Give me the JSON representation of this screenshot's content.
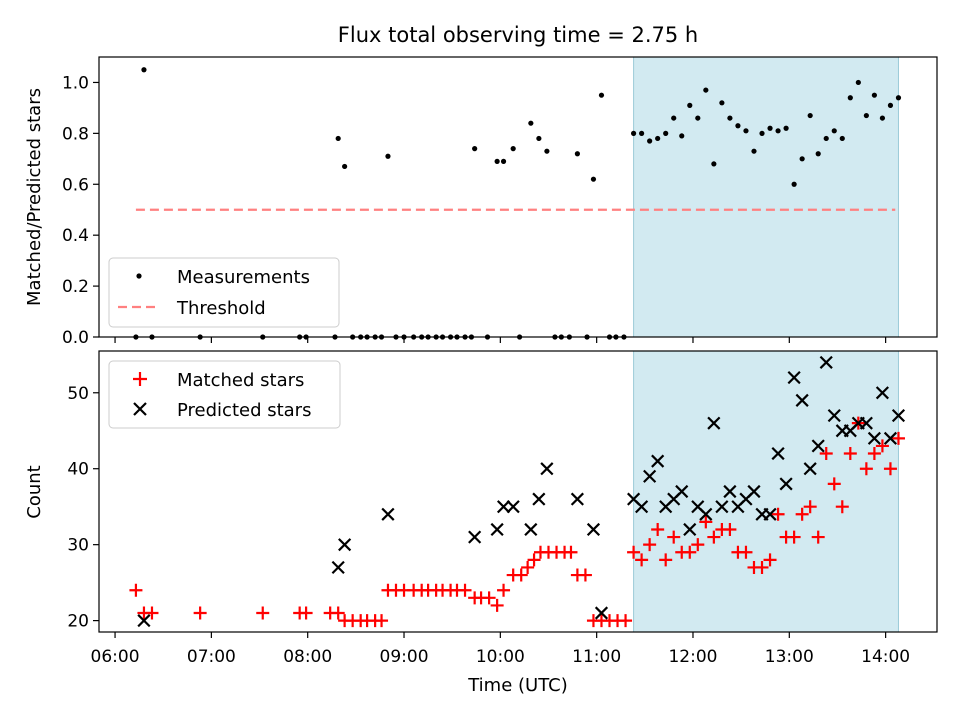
{
  "chart_data": [
    {
      "type": "scatter",
      "title": "Flux total observing time = 2.75 h",
      "ylabel": "Matched/Predicted stars",
      "ylim": [
        0,
        1.1
      ],
      "xlim": [
        "05:50",
        "14:32"
      ],
      "y_ticks": [
        "0.0",
        "0.2",
        "0.4",
        "0.6",
        "0.8",
        "1.0"
      ],
      "shaded_interval": {
        "start": "11:23",
        "end": "14:08",
        "color": "#add8e6"
      },
      "threshold": {
        "name": "Threshold",
        "value": 0.5,
        "x_start": "06:13",
        "x_end": "14:06",
        "color": "#ff8080"
      },
      "legend": {
        "position": "lower-left",
        "entries": [
          "Measurements",
          "Threshold"
        ]
      },
      "series": [
        {
          "name": "Measurements",
          "color": "#000000",
          "points": [
            [
              "06:13",
              0
            ],
            [
              "06:18",
              1.05
            ],
            [
              "06:23",
              0
            ],
            [
              "06:53",
              0
            ],
            [
              "07:32",
              0
            ],
            [
              "07:55",
              0
            ],
            [
              "07:59",
              0
            ],
            [
              "08:17",
              0
            ],
            [
              "08:19",
              0.78
            ],
            [
              "08:23",
              0.67
            ],
            [
              "08:28",
              0
            ],
            [
              "08:33",
              0
            ],
            [
              "08:37",
              0
            ],
            [
              "08:42",
              0
            ],
            [
              "08:46",
              0
            ],
            [
              "08:50",
              0.71
            ],
            [
              "08:55",
              0
            ],
            [
              "09:00",
              0
            ],
            [
              "09:06",
              0
            ],
            [
              "09:11",
              0
            ],
            [
              "09:15",
              0
            ],
            [
              "09:20",
              0
            ],
            [
              "09:24",
              0
            ],
            [
              "09:29",
              0
            ],
            [
              "09:33",
              0
            ],
            [
              "09:38",
              0
            ],
            [
              "09:42",
              0
            ],
            [
              "09:44",
              0.74
            ],
            [
              "09:52",
              0
            ],
            [
              "09:58",
              0.69
            ],
            [
              "10:02",
              0.69
            ],
            [
              "10:08",
              0.74
            ],
            [
              "10:12",
              0
            ],
            [
              "10:19",
              0.84
            ],
            [
              "10:24",
              0.78
            ],
            [
              "10:29",
              0.73
            ],
            [
              "10:34",
              0
            ],
            [
              "10:38",
              0
            ],
            [
              "10:43",
              0
            ],
            [
              "10:48",
              0.72
            ],
            [
              "10:54",
              0
            ],
            [
              "10:58",
              0.62
            ],
            [
              "11:03",
              0.95
            ],
            [
              "11:08",
              0
            ],
            [
              "11:12",
              0
            ],
            [
              "11:17",
              0
            ],
            [
              "11:23",
              0.8
            ],
            [
              "11:28",
              0.8
            ],
            [
              "11:33",
              0.77
            ],
            [
              "11:38",
              0.78
            ],
            [
              "11:43",
              0.8
            ],
            [
              "11:48",
              0.86
            ],
            [
              "11:53",
              0.79
            ],
            [
              "11:58",
              0.91
            ],
            [
              "12:03",
              0.86
            ],
            [
              "12:08",
              0.97
            ],
            [
              "12:13",
              0.68
            ],
            [
              "12:18",
              0.92
            ],
            [
              "12:23",
              0.86
            ],
            [
              "12:28",
              0.83
            ],
            [
              "12:33",
              0.81
            ],
            [
              "12:38",
              0.73
            ],
            [
              "12:43",
              0.8
            ],
            [
              "12:48",
              0.82
            ],
            [
              "12:53",
              0.81
            ],
            [
              "12:58",
              0.82
            ],
            [
              "13:03",
              0.6
            ],
            [
              "13:08",
              0.7
            ],
            [
              "13:13",
              0.87
            ],
            [
              "13:18",
              0.72
            ],
            [
              "13:23",
              0.78
            ],
            [
              "13:28",
              0.81
            ],
            [
              "13:33",
              0.78
            ],
            [
              "13:38",
              0.94
            ],
            [
              "13:43",
              1.0
            ],
            [
              "13:48",
              0.87
            ],
            [
              "13:53",
              0.95
            ],
            [
              "13:58",
              0.86
            ],
            [
              "14:03",
              0.91
            ],
            [
              "14:08",
              0.94
            ]
          ]
        }
      ]
    },
    {
      "type": "scatter",
      "xlabel": "Time (UTC)",
      "ylabel": "Count",
      "ylim": [
        18.5,
        55.5
      ],
      "xlim": [
        "05:50",
        "14:32"
      ],
      "x_ticks": [
        "06:00",
        "07:00",
        "08:00",
        "09:00",
        "10:00",
        "11:00",
        "12:00",
        "13:00",
        "14:00"
      ],
      "y_ticks": [
        "20",
        "30",
        "40",
        "50"
      ],
      "shaded_interval": {
        "start": "11:23",
        "end": "14:08",
        "color": "#add8e6"
      },
      "legend": {
        "position": "top-left",
        "entries": [
          "Matched stars",
          "Predicted stars"
        ]
      },
      "series": [
        {
          "name": "Matched stars",
          "marker": "plus",
          "color": "#ff0000",
          "points": [
            [
              "06:13",
              24
            ],
            [
              "06:18",
              21
            ],
            [
              "06:23",
              21
            ],
            [
              "06:53",
              21
            ],
            [
              "07:32",
              21
            ],
            [
              "07:55",
              21
            ],
            [
              "07:59",
              21
            ],
            [
              "08:14",
              21
            ],
            [
              "08:19",
              21
            ],
            [
              "08:23",
              20
            ],
            [
              "08:28",
              20
            ],
            [
              "08:33",
              20
            ],
            [
              "08:37",
              20
            ],
            [
              "08:42",
              20
            ],
            [
              "08:46",
              20
            ],
            [
              "08:50",
              24
            ],
            [
              "08:55",
              24
            ],
            [
              "09:00",
              24
            ],
            [
              "09:06",
              24
            ],
            [
              "09:11",
              24
            ],
            [
              "09:15",
              24
            ],
            [
              "09:20",
              24
            ],
            [
              "09:24",
              24
            ],
            [
              "09:29",
              24
            ],
            [
              "09:33",
              24
            ],
            [
              "09:38",
              24
            ],
            [
              "09:44",
              23
            ],
            [
              "09:48",
              23
            ],
            [
              "09:53",
              23
            ],
            [
              "09:58",
              22
            ],
            [
              "10:02",
              24
            ],
            [
              "10:08",
              26
            ],
            [
              "10:13",
              26
            ],
            [
              "10:17",
              27
            ],
            [
              "10:21",
              28
            ],
            [
              "10:25",
              29
            ],
            [
              "10:30",
              29
            ],
            [
              "10:35",
              29
            ],
            [
              "10:40",
              29
            ],
            [
              "10:44",
              29
            ],
            [
              "10:48",
              26
            ],
            [
              "10:53",
              26
            ],
            [
              "10:58",
              20
            ],
            [
              "11:03",
              20
            ],
            [
              "11:08",
              20
            ],
            [
              "11:13",
              20
            ],
            [
              "11:18",
              20
            ],
            [
              "11:23",
              29
            ],
            [
              "11:28",
              28
            ],
            [
              "11:33",
              30
            ],
            [
              "11:38",
              32
            ],
            [
              "11:43",
              28
            ],
            [
              "11:48",
              31
            ],
            [
              "11:53",
              29
            ],
            [
              "11:58",
              29
            ],
            [
              "12:03",
              30
            ],
            [
              "12:08",
              33
            ],
            [
              "12:13",
              31
            ],
            [
              "12:18",
              32
            ],
            [
              "12:23",
              32
            ],
            [
              "12:28",
              29
            ],
            [
              "12:33",
              29
            ],
            [
              "12:38",
              27
            ],
            [
              "12:43",
              27
            ],
            [
              "12:48",
              28
            ],
            [
              "12:53",
              34
            ],
            [
              "12:58",
              31
            ],
            [
              "13:03",
              31
            ],
            [
              "13:08",
              34
            ],
            [
              "13:13",
              35
            ],
            [
              "13:18",
              31
            ],
            [
              "13:23",
              42
            ],
            [
              "13:28",
              38
            ],
            [
              "13:33",
              35
            ],
            [
              "13:38",
              42
            ],
            [
              "13:43",
              46
            ],
            [
              "13:48",
              40
            ],
            [
              "13:53",
              42
            ],
            [
              "13:58",
              43
            ],
            [
              "14:03",
              40
            ],
            [
              "14:08",
              44
            ]
          ]
        },
        {
          "name": "Predicted stars",
          "marker": "x",
          "color": "#000000",
          "points": [
            [
              "06:18",
              20
            ],
            [
              "08:19",
              27
            ],
            [
              "08:23",
              30
            ],
            [
              "08:50",
              34
            ],
            [
              "09:44",
              31
            ],
            [
              "09:58",
              32
            ],
            [
              "10:02",
              35
            ],
            [
              "10:08",
              35
            ],
            [
              "10:19",
              32
            ],
            [
              "10:24",
              36
            ],
            [
              "10:29",
              40
            ],
            [
              "10:48",
              36
            ],
            [
              "10:58",
              32
            ],
            [
              "11:03",
              21
            ],
            [
              "11:23",
              36
            ],
            [
              "11:28",
              35
            ],
            [
              "11:33",
              39
            ],
            [
              "11:38",
              41
            ],
            [
              "11:43",
              35
            ],
            [
              "11:48",
              36
            ],
            [
              "11:53",
              37
            ],
            [
              "11:58",
              32
            ],
            [
              "12:03",
              35
            ],
            [
              "12:08",
              34
            ],
            [
              "12:13",
              46
            ],
            [
              "12:18",
              35
            ],
            [
              "12:23",
              37
            ],
            [
              "12:28",
              35
            ],
            [
              "12:33",
              36
            ],
            [
              "12:38",
              37
            ],
            [
              "12:43",
              34
            ],
            [
              "12:48",
              34
            ],
            [
              "12:53",
              42
            ],
            [
              "12:58",
              38
            ],
            [
              "13:03",
              52
            ],
            [
              "13:08",
              49
            ],
            [
              "13:13",
              40
            ],
            [
              "13:18",
              43
            ],
            [
              "13:23",
              54
            ],
            [
              "13:28",
              47
            ],
            [
              "13:33",
              45
            ],
            [
              "13:38",
              45
            ],
            [
              "13:43",
              46
            ],
            [
              "13:48",
              46
            ],
            [
              "13:53",
              44
            ],
            [
              "13:58",
              50
            ],
            [
              "14:03",
              44
            ],
            [
              "14:08",
              47
            ]
          ]
        }
      ]
    }
  ]
}
